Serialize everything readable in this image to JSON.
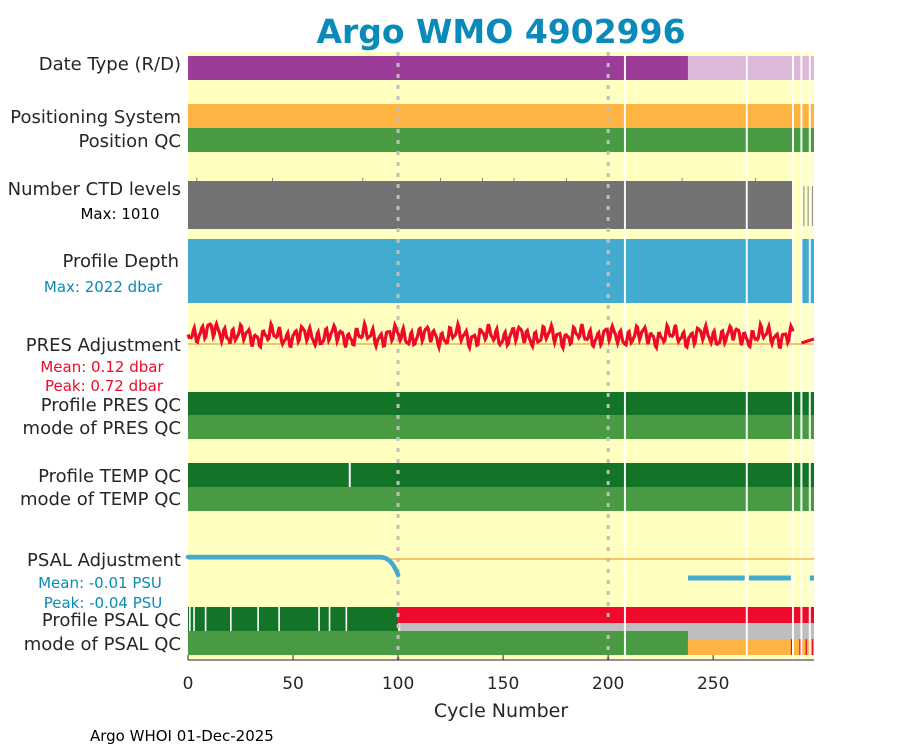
{
  "chart_data": {
    "type": "heatmap",
    "title": "Argo WMO 4902996",
    "xlabel": "Cycle Number",
    "xlim": [
      0,
      298
    ],
    "xticks": [
      0,
      50,
      100,
      150,
      200,
      250
    ],
    "footer": "Argo WHOI 01-Dec-2025",
    "colors": {
      "background": "#ffffc0",
      "title": "#0a8ab8",
      "purple": "#9b3d98",
      "light_purple": "#dcb8d9",
      "orange": "#ffb342",
      "green_dark": "#137326",
      "green_mid": "#4a9a44",
      "gray_ctd": "#727272",
      "blue": "#44abd0",
      "red": "#ee0a2a",
      "gray_light": "#bebebe",
      "ref_line": "#f0b450",
      "grid": "#bfbfbf"
    },
    "gap_cycles": [
      208,
      266,
      288,
      292,
      296
    ],
    "grid_cycles": [
      100,
      200
    ],
    "rows": {
      "date_type": {
        "label": "Date Type (R/D)",
        "realtime_until": 238,
        "delayed_from": 238
      },
      "positioning_system": {
        "label": "Positioning System"
      },
      "position_qc": {
        "label": "Position QC"
      },
      "ctd_levels": {
        "label": "Number CTD levels",
        "max_label": "Max: 1010",
        "max": 1010
      },
      "profile_depth": {
        "label": "Profile Depth",
        "max_label": "Max: 2022 dbar",
        "max": 2022
      },
      "pres_adjustment": {
        "label": "PRES Adjustment",
        "mean_label": "Mean: 0.12 dbar",
        "peak_label": "Peak: 0.72 dbar",
        "mean": 0.12,
        "peak": 0.72
      },
      "profile_pres_qc": {
        "label": "Profile PRES QC"
      },
      "mode_pres_qc": {
        "label": "mode of PRES QC"
      },
      "profile_temp_qc": {
        "label": "Profile TEMP QC",
        "notch_cycle": 77
      },
      "mode_temp_qc": {
        "label": "mode of TEMP QC"
      },
      "psal_adjustment": {
        "label": "PSAL Adjustment",
        "mean_label": "Mean: -0.01 PSU",
        "peak_label": "Peak: -0.04 PSU",
        "mean": -0.01,
        "peak": -0.04
      },
      "profile_psal_qc": {
        "label": "Profile PSAL QC",
        "bad_from": 101
      },
      "mode_psal_qc": {
        "label": "mode of PSAL QC",
        "questionable_from": 238
      }
    }
  }
}
